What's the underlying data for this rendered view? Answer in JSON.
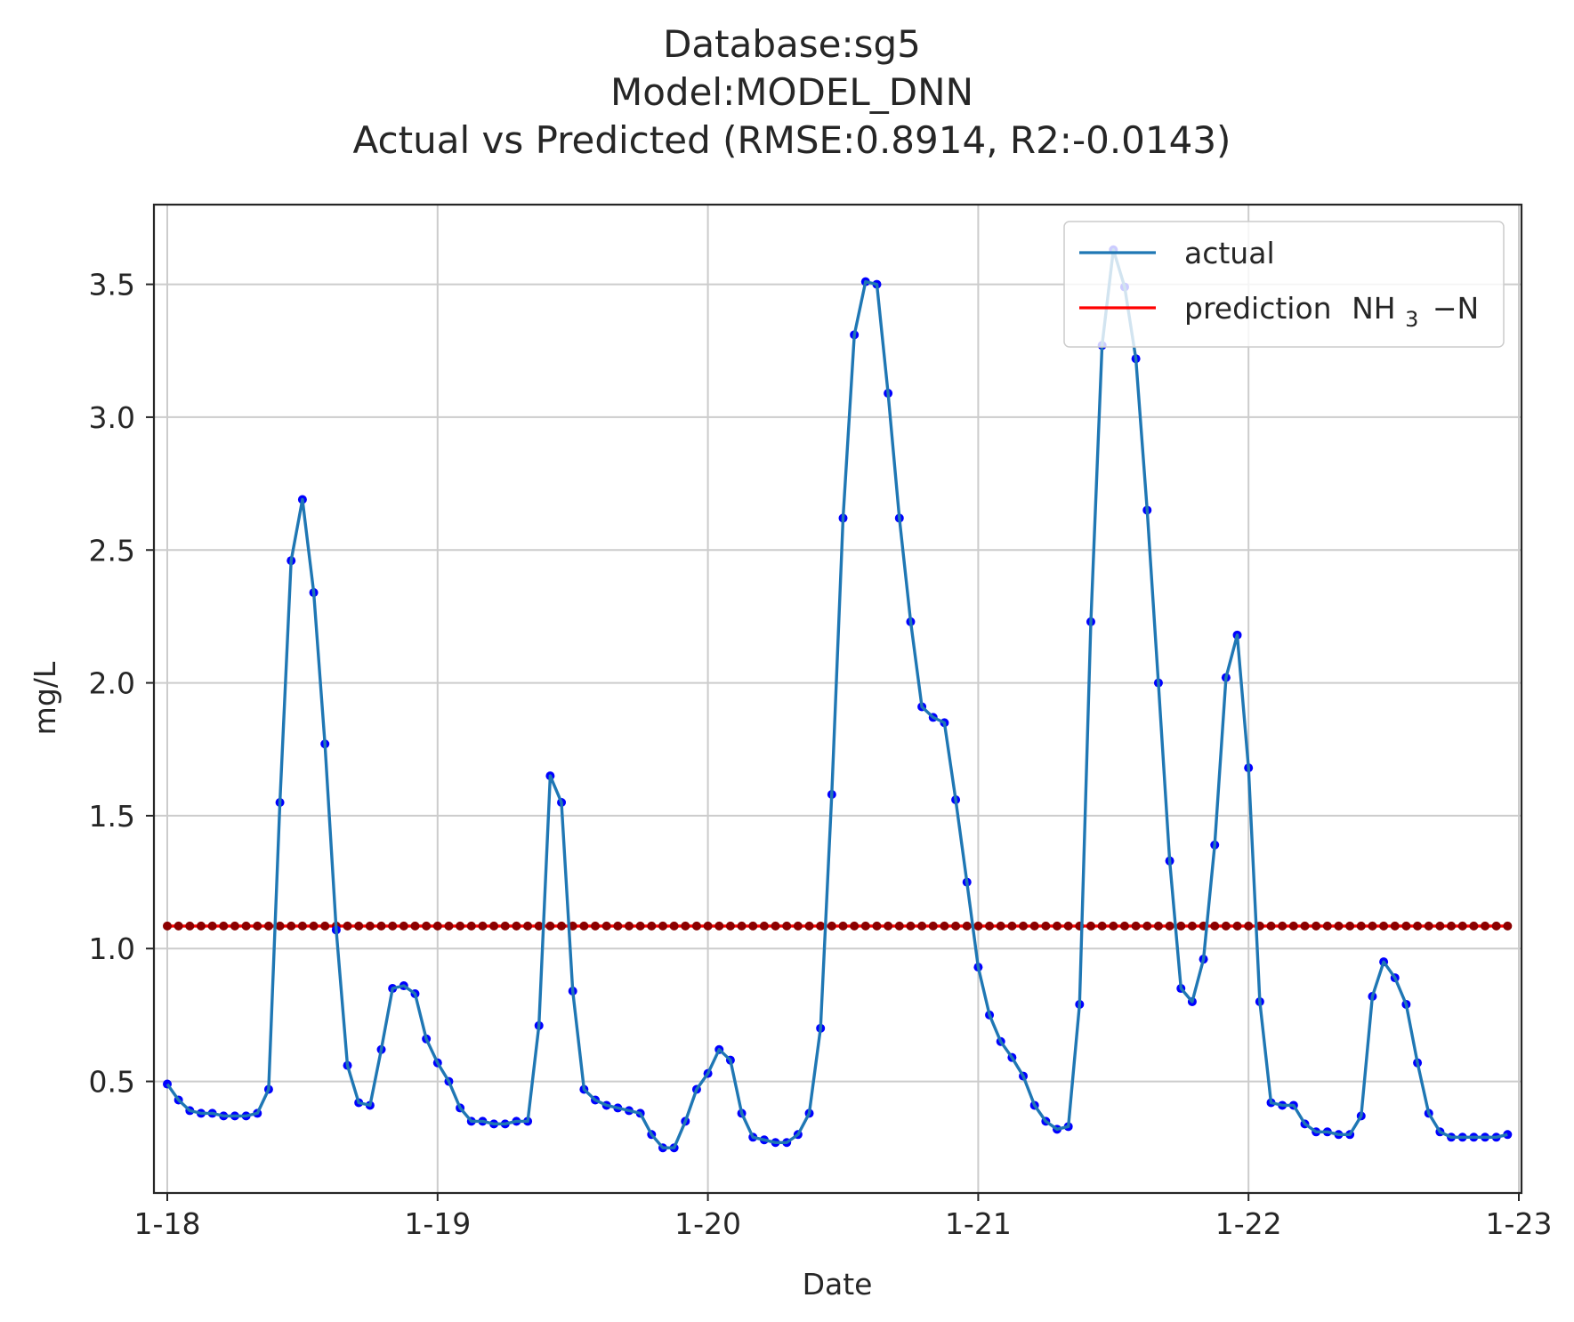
{
  "chart_data": {
    "type": "line",
    "title_lines": [
      "Database:sg5",
      "Model:MODEL_DNN",
      "Actual vs Predicted (RMSE:0.8914, R2:-0.0143)"
    ],
    "xlabel": "Date",
    "ylabel": "mg/L",
    "x_tick_labels": [
      "1-18",
      "1-19",
      "1-20",
      "1-21",
      "1-22",
      "1-23"
    ],
    "y_ticks": [
      0.5,
      1.0,
      1.5,
      2.0,
      2.5,
      3.0,
      3.5
    ],
    "y_tick_labels": [
      "0.5",
      "1.0",
      "1.5",
      "2.0",
      "2.5",
      "3.0",
      "3.5"
    ],
    "xlim": [
      "1-18",
      "1-23"
    ],
    "ylim": [
      0.08,
      3.8
    ],
    "grid": true,
    "legend_position": "top-right",
    "sample_interval_hours": 1,
    "series": [
      {
        "name": "actual",
        "color": "#1f77b4",
        "marker_color": "#0000ff",
        "values": [
          0.49,
          0.43,
          0.39,
          0.38,
          0.38,
          0.37,
          0.37,
          0.37,
          0.38,
          0.47,
          1.55,
          2.46,
          2.69,
          2.34,
          1.77,
          1.07,
          0.56,
          0.42,
          0.41,
          0.62,
          0.85,
          0.86,
          0.83,
          0.66,
          0.57,
          0.5,
          0.4,
          0.35,
          0.35,
          0.34,
          0.34,
          0.35,
          0.35,
          0.71,
          1.65,
          1.55,
          0.84,
          0.47,
          0.43,
          0.41,
          0.4,
          0.39,
          0.38,
          0.3,
          0.25,
          0.25,
          0.35,
          0.47,
          0.53,
          0.62,
          0.58,
          0.38,
          0.29,
          0.28,
          0.27,
          0.27,
          0.3,
          0.38,
          0.7,
          1.58,
          2.62,
          3.31,
          3.51,
          3.5,
          3.09,
          2.62,
          2.23,
          1.91,
          1.87,
          1.85,
          1.56,
          1.25,
          0.93,
          0.75,
          0.65,
          0.59,
          0.52,
          0.41,
          0.35,
          0.32,
          0.33,
          0.79,
          2.23,
          3.27,
          3.63,
          3.49,
          3.22,
          2.65,
          2.0,
          1.33,
          0.85,
          0.8,
          0.96,
          1.39,
          2.02,
          2.18,
          1.68,
          0.8,
          0.42,
          0.41,
          0.41,
          0.34,
          0.31,
          0.31,
          0.3,
          0.3,
          0.37,
          0.82,
          0.95,
          0.89,
          0.79,
          0.57,
          0.38,
          0.31,
          0.29,
          0.29,
          0.29,
          0.29,
          0.29,
          0.3
        ]
      },
      {
        "name": "prediction",
        "name_subscript": "3",
        "name_formula": [
          "NH",
          "−N"
        ],
        "color": "#ff0000",
        "marker_color": "#8b0000",
        "constant_value": 1.085
      }
    ]
  }
}
